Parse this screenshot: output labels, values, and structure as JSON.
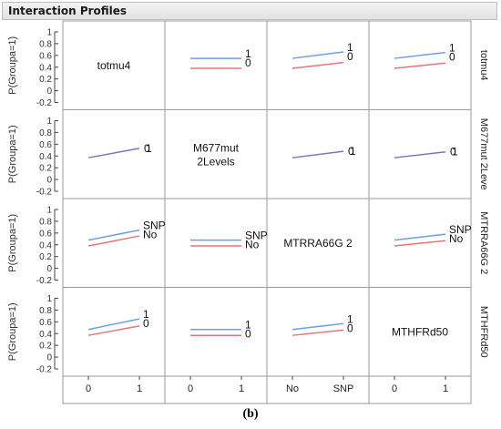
{
  "window": {
    "title": "Interaction Profiles"
  },
  "caption": "(b)",
  "chart_data": {
    "type": "line",
    "title": "Interaction Profiles",
    "ylabel": "P(Groupa=1)",
    "ylim": [
      -0.2,
      1.0
    ],
    "yticks": [
      "1",
      "0.8",
      "0.6",
      "0.4",
      "0.2",
      "0",
      "-0.2"
    ],
    "yticks_values": [
      1,
      0.8,
      0.6,
      0.4,
      0.2,
      0,
      -0.2
    ],
    "colors": {
      "blue": "#6d9ee6",
      "red": "#e8737a",
      "purple": "#7f6fc7"
    },
    "factors": [
      {
        "name": "totmu4",
        "diag_label": [
          "totmu4"
        ],
        "side_label": "totmu4",
        "x_levels": [
          "0",
          "1"
        ]
      },
      {
        "name": "M677mut 2Levels",
        "diag_label": [
          "M677mut",
          "2Levels"
        ],
        "side_label": "M677mut 2Leve",
        "x_levels": [
          "0",
          "1"
        ]
      },
      {
        "name": "MTRRA66G 2",
        "diag_label": [
          "MTRRA66G 2"
        ],
        "side_label": "MTRRA66G 2",
        "x_levels": [
          "No",
          "SNP"
        ]
      },
      {
        "name": "MTHFRd50",
        "diag_label": [
          "MTHFRd50"
        ],
        "side_label": "MTHFRd50",
        "x_levels": [
          "0",
          "1"
        ]
      }
    ],
    "cells": [
      {
        "row": 0,
        "col": 1,
        "labels": [
          "1",
          "0"
        ],
        "overlap": false,
        "series": [
          {
            "name": "1",
            "values": [
              0.55,
              0.55
            ]
          },
          {
            "name": "0",
            "values": [
              0.38,
              0.38
            ]
          }
        ]
      },
      {
        "row": 0,
        "col": 2,
        "labels": [
          "1",
          "0"
        ],
        "overlap": false,
        "series": [
          {
            "name": "1",
            "values": [
              0.55,
              0.66
            ]
          },
          {
            "name": "0",
            "values": [
              0.38,
              0.48
            ]
          }
        ]
      },
      {
        "row": 0,
        "col": 3,
        "labels": [
          "1",
          "0"
        ],
        "overlap": false,
        "series": [
          {
            "name": "1",
            "values": [
              0.55,
              0.65
            ]
          },
          {
            "name": "0",
            "values": [
              0.38,
              0.47
            ]
          }
        ]
      },
      {
        "row": 1,
        "col": 0,
        "labels": [
          "0",
          "1"
        ],
        "overlap": true,
        "series": [
          {
            "name": "0",
            "values": [
              0.37,
              0.53
            ]
          },
          {
            "name": "1",
            "values": [
              0.37,
              0.53
            ]
          }
        ]
      },
      {
        "row": 1,
        "col": 2,
        "labels": [
          "0",
          "1"
        ],
        "overlap": true,
        "series": [
          {
            "name": "0",
            "values": [
              0.37,
              0.48
            ]
          },
          {
            "name": "1",
            "values": [
              0.37,
              0.48
            ]
          }
        ]
      },
      {
        "row": 1,
        "col": 3,
        "labels": [
          "0",
          "1"
        ],
        "overlap": true,
        "series": [
          {
            "name": "0",
            "values": [
              0.37,
              0.47
            ]
          },
          {
            "name": "1",
            "values": [
              0.37,
              0.47
            ]
          }
        ]
      },
      {
        "row": 2,
        "col": 0,
        "labels": [
          "SNP",
          "No"
        ],
        "overlap": false,
        "series": [
          {
            "name": "SNP",
            "values": [
              0.48,
              0.65
            ]
          },
          {
            "name": "No",
            "values": [
              0.38,
              0.55
            ]
          }
        ]
      },
      {
        "row": 2,
        "col": 1,
        "labels": [
          "SNP",
          "No"
        ],
        "overlap": false,
        "series": [
          {
            "name": "SNP",
            "values": [
              0.48,
              0.48
            ]
          },
          {
            "name": "No",
            "values": [
              0.38,
              0.38
            ]
          }
        ]
      },
      {
        "row": 2,
        "col": 3,
        "labels": [
          "SNP",
          "No"
        ],
        "overlap": false,
        "series": [
          {
            "name": "SNP",
            "values": [
              0.48,
              0.58
            ]
          },
          {
            "name": "No",
            "values": [
              0.38,
              0.47
            ]
          }
        ]
      },
      {
        "row": 3,
        "col": 0,
        "labels": [
          "1",
          "0"
        ],
        "overlap": false,
        "series": [
          {
            "name": "1",
            "values": [
              0.47,
              0.65
            ]
          },
          {
            "name": "0",
            "values": [
              0.37,
              0.53
            ]
          }
        ]
      },
      {
        "row": 3,
        "col": 1,
        "labels": [
          "1",
          "0"
        ],
        "overlap": false,
        "series": [
          {
            "name": "1",
            "values": [
              0.47,
              0.47
            ]
          },
          {
            "name": "0",
            "values": [
              0.37,
              0.37
            ]
          }
        ]
      },
      {
        "row": 3,
        "col": 2,
        "labels": [
          "1",
          "0"
        ],
        "overlap": false,
        "series": [
          {
            "name": "1",
            "values": [
              0.47,
              0.57
            ]
          },
          {
            "name": "0",
            "values": [
              0.37,
              0.46
            ]
          }
        ]
      }
    ]
  }
}
